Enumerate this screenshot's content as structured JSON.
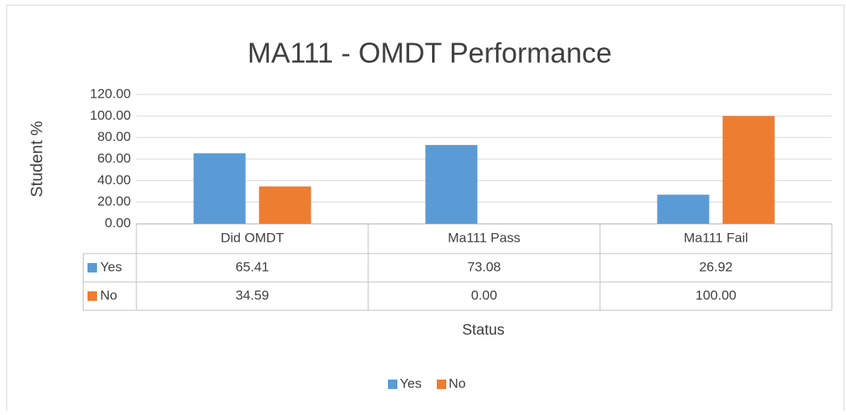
{
  "chart_data": {
    "type": "bar",
    "title": "MA111 - OMDT Performance",
    "y_label": "Student %",
    "x_label": "Status",
    "categories": [
      "Did OMDT",
      "Ma111 Pass",
      "Ma111 Fail"
    ],
    "series": [
      {
        "name": "Yes",
        "color": "#5b9bd5",
        "values": [
          65.41,
          73.08,
          26.92
        ],
        "value_labels": [
          "65.41",
          "73.08",
          "26.92"
        ]
      },
      {
        "name": "No",
        "color": "#ed7d31",
        "values": [
          34.59,
          0,
          100
        ],
        "value_labels": [
          "34.59",
          "0.00",
          "100.00"
        ]
      }
    ],
    "ylim": [
      0,
      120
    ],
    "yticks": [
      {
        "value": 0,
        "label": "0.00"
      },
      {
        "value": 20,
        "label": "20.00"
      },
      {
        "value": 40,
        "label": "40.00"
      },
      {
        "value": 60,
        "label": "60.00"
      },
      {
        "value": 80,
        "label": "80.00"
      },
      {
        "value": 100,
        "label": "100.00"
      },
      {
        "value": 120,
        "label": "120.00"
      }
    ],
    "grid": true,
    "legend": "bottom"
  }
}
